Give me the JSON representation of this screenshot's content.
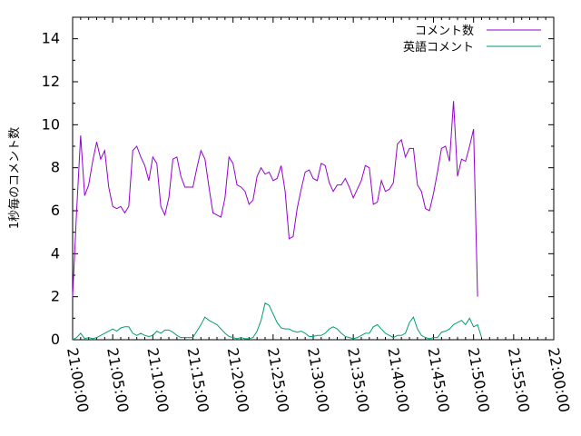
{
  "chart_data": {
    "type": "line",
    "title": "",
    "xlabel": "",
    "ylabel": "1秒毎のコメント数",
    "ylim": [
      0,
      15
    ],
    "yticks": [
      0,
      2,
      4,
      6,
      8,
      10,
      12,
      14
    ],
    "xlim": [
      "21:00:00",
      "22:00:00"
    ],
    "xticks": [
      "21:00:00",
      "21:05:00",
      "21:10:00",
      "21:15:00",
      "21:20:00",
      "21:25:00",
      "21:30:00",
      "21:35:00",
      "21:40:00",
      "21:45:00",
      "21:50:00",
      "21:55:00",
      "22:00:00"
    ],
    "grid": false,
    "legend_position": "top-right",
    "series": [
      {
        "name": "コメント数",
        "color": "#9400d3",
        "points": [
          [
            "21:00:00",
            2.0
          ],
          [
            "21:00:30",
            6.0
          ],
          [
            "21:01:00",
            9.5
          ],
          [
            "21:01:30",
            6.7
          ],
          [
            "21:02:00",
            7.2
          ],
          [
            "21:02:30",
            8.3
          ],
          [
            "21:03:00",
            9.2
          ],
          [
            "21:03:30",
            8.4
          ],
          [
            "21:04:00",
            8.8
          ],
          [
            "21:04:30",
            7.1
          ],
          [
            "21:05:00",
            6.2
          ],
          [
            "21:05:30",
            6.1
          ],
          [
            "21:06:00",
            6.2
          ],
          [
            "21:06:30",
            5.9
          ],
          [
            "21:07:00",
            6.2
          ],
          [
            "21:07:30",
            8.8
          ],
          [
            "21:08:00",
            9.0
          ],
          [
            "21:08:30",
            8.5
          ],
          [
            "21:09:00",
            8.1
          ],
          [
            "21:09:30",
            7.4
          ],
          [
            "21:10:00",
            8.5
          ],
          [
            "21:10:30",
            8.2
          ],
          [
            "21:11:00",
            6.2
          ],
          [
            "21:11:30",
            5.8
          ],
          [
            "21:12:00",
            6.6
          ],
          [
            "21:12:30",
            8.4
          ],
          [
            "21:13:00",
            8.5
          ],
          [
            "21:13:30",
            7.6
          ],
          [
            "21:14:00",
            7.1
          ],
          [
            "21:14:30",
            7.1
          ],
          [
            "21:15:00",
            7.1
          ],
          [
            "21:15:30",
            8.0
          ],
          [
            "21:16:00",
            8.8
          ],
          [
            "21:16:30",
            8.4
          ],
          [
            "21:17:00",
            7.1
          ],
          [
            "21:17:30",
            5.9
          ],
          [
            "21:18:00",
            5.8
          ],
          [
            "21:18:30",
            5.7
          ],
          [
            "21:19:00",
            6.6
          ],
          [
            "21:19:30",
            8.5
          ],
          [
            "21:20:00",
            8.2
          ],
          [
            "21:20:30",
            7.2
          ],
          [
            "21:21:00",
            7.1
          ],
          [
            "21:21:30",
            6.9
          ],
          [
            "21:22:00",
            6.3
          ],
          [
            "21:22:30",
            6.5
          ],
          [
            "21:23:00",
            7.6
          ],
          [
            "21:23:30",
            8.0
          ],
          [
            "21:24:00",
            7.7
          ],
          [
            "21:24:30",
            7.8
          ],
          [
            "21:25:00",
            7.4
          ],
          [
            "21:25:30",
            7.5
          ],
          [
            "21:26:00",
            8.1
          ],
          [
            "21:26:30",
            6.9
          ],
          [
            "21:27:00",
            4.7
          ],
          [
            "21:27:30",
            4.8
          ],
          [
            "21:28:00",
            6.1
          ],
          [
            "21:28:30",
            7.0
          ],
          [
            "21:29:00",
            7.8
          ],
          [
            "21:29:30",
            7.9
          ],
          [
            "21:30:00",
            7.5
          ],
          [
            "21:30:30",
            7.4
          ],
          [
            "21:31:00",
            8.2
          ],
          [
            "21:31:30",
            8.1
          ],
          [
            "21:32:00",
            7.3
          ],
          [
            "21:32:30",
            6.9
          ],
          [
            "21:33:00",
            7.2
          ],
          [
            "21:33:30",
            7.2
          ],
          [
            "21:34:00",
            7.5
          ],
          [
            "21:34:30",
            7.1
          ],
          [
            "21:35:00",
            6.6
          ],
          [
            "21:35:30",
            7.0
          ],
          [
            "21:36:00",
            7.4
          ],
          [
            "21:36:30",
            8.1
          ],
          [
            "21:37:00",
            8.0
          ],
          [
            "21:37:30",
            6.3
          ],
          [
            "21:38:00",
            6.4
          ],
          [
            "21:38:30",
            7.4
          ],
          [
            "21:39:00",
            6.9
          ],
          [
            "21:39:30",
            7.0
          ],
          [
            "21:40:00",
            7.3
          ],
          [
            "21:40:30",
            9.1
          ],
          [
            "21:41:00",
            9.3
          ],
          [
            "21:41:30",
            8.5
          ],
          [
            "21:42:00",
            8.9
          ],
          [
            "21:42:30",
            8.9
          ],
          [
            "21:43:00",
            7.2
          ],
          [
            "21:43:30",
            6.9
          ],
          [
            "21:44:00",
            6.1
          ],
          [
            "21:44:30",
            6.0
          ],
          [
            "21:45:00",
            6.8
          ],
          [
            "21:45:30",
            7.8
          ],
          [
            "21:46:00",
            8.9
          ],
          [
            "21:46:30",
            9.0
          ],
          [
            "21:47:00",
            8.3
          ],
          [
            "21:47:30",
            11.1
          ],
          [
            "21:48:00",
            7.6
          ],
          [
            "21:48:30",
            8.4
          ],
          [
            "21:49:00",
            8.3
          ],
          [
            "21:49:30",
            9.0
          ],
          [
            "21:50:00",
            9.8
          ],
          [
            "21:50:30",
            2.0
          ]
        ]
      },
      {
        "name": "英語コメント",
        "color": "#009e73",
        "points": [
          [
            "21:00:00",
            0.0
          ],
          [
            "21:00:30",
            0.1
          ],
          [
            "21:01:00",
            0.3
          ],
          [
            "21:01:30",
            0.05
          ],
          [
            "21:02:00",
            0.1
          ],
          [
            "21:02:30",
            0.05
          ],
          [
            "21:03:00",
            0.1
          ],
          [
            "21:03:30",
            0.2
          ],
          [
            "21:04:00",
            0.3
          ],
          [
            "21:04:30",
            0.4
          ],
          [
            "21:05:00",
            0.5
          ],
          [
            "21:05:30",
            0.4
          ],
          [
            "21:06:00",
            0.55
          ],
          [
            "21:06:30",
            0.6
          ],
          [
            "21:07:00",
            0.6
          ],
          [
            "21:07:30",
            0.3
          ],
          [
            "21:08:00",
            0.2
          ],
          [
            "21:08:30",
            0.3
          ],
          [
            "21:09:00",
            0.2
          ],
          [
            "21:09:30",
            0.15
          ],
          [
            "21:10:00",
            0.2
          ],
          [
            "21:10:30",
            0.4
          ],
          [
            "21:11:00",
            0.3
          ],
          [
            "21:11:30",
            0.45
          ],
          [
            "21:12:00",
            0.45
          ],
          [
            "21:12:30",
            0.35
          ],
          [
            "21:13:00",
            0.2
          ],
          [
            "21:13:30",
            0.1
          ],
          [
            "21:14:00",
            0.1
          ],
          [
            "21:14:30",
            0.1
          ],
          [
            "21:15:00",
            0.1
          ],
          [
            "21:15:30",
            0.4
          ],
          [
            "21:16:00",
            0.7
          ],
          [
            "21:16:30",
            1.05
          ],
          [
            "21:17:00",
            0.9
          ],
          [
            "21:17:30",
            0.8
          ],
          [
            "21:18:00",
            0.7
          ],
          [
            "21:18:30",
            0.5
          ],
          [
            "21:19:00",
            0.3
          ],
          [
            "21:19:30",
            0.15
          ],
          [
            "21:20:00",
            0.1
          ],
          [
            "21:20:30",
            0.05
          ],
          [
            "21:21:00",
            0.1
          ],
          [
            "21:21:30",
            0.05
          ],
          [
            "21:22:00",
            0.05
          ],
          [
            "21:22:30",
            0.1
          ],
          [
            "21:23:00",
            0.4
          ],
          [
            "21:23:30",
            0.9
          ],
          [
            "21:24:00",
            1.7
          ],
          [
            "21:24:30",
            1.6
          ],
          [
            "21:25:00",
            1.2
          ],
          [
            "21:25:30",
            0.8
          ],
          [
            "21:26:00",
            0.55
          ],
          [
            "21:26:30",
            0.5
          ],
          [
            "21:27:00",
            0.5
          ],
          [
            "21:27:30",
            0.4
          ],
          [
            "21:28:00",
            0.35
          ],
          [
            "21:28:30",
            0.4
          ],
          [
            "21:29:00",
            0.3
          ],
          [
            "21:29:30",
            0.15
          ],
          [
            "21:30:00",
            0.15
          ],
          [
            "21:30:30",
            0.2
          ],
          [
            "21:31:00",
            0.2
          ],
          [
            "21:31:30",
            0.3
          ],
          [
            "21:32:00",
            0.5
          ],
          [
            "21:32:30",
            0.6
          ],
          [
            "21:33:00",
            0.5
          ],
          [
            "21:33:30",
            0.3
          ],
          [
            "21:34:00",
            0.15
          ],
          [
            "21:34:30",
            0.1
          ],
          [
            "21:35:00",
            0.05
          ],
          [
            "21:35:30",
            0.1
          ],
          [
            "21:36:00",
            0.2
          ],
          [
            "21:36:30",
            0.3
          ],
          [
            "21:37:00",
            0.3
          ],
          [
            "21:37:30",
            0.6
          ],
          [
            "21:38:00",
            0.7
          ],
          [
            "21:38:30",
            0.5
          ],
          [
            "21:39:00",
            0.3
          ],
          [
            "21:39:30",
            0.2
          ],
          [
            "21:40:00",
            0.1
          ],
          [
            "21:40:30",
            0.2
          ],
          [
            "21:41:00",
            0.2
          ],
          [
            "21:41:30",
            0.3
          ],
          [
            "21:42:00",
            0.8
          ],
          [
            "21:42:30",
            1.05
          ],
          [
            "21:43:00",
            0.5
          ],
          [
            "21:43:30",
            0.2
          ],
          [
            "21:44:00",
            0.1
          ],
          [
            "21:44:30",
            0.05
          ],
          [
            "21:45:00",
            0.1
          ],
          [
            "21:45:30",
            0.1
          ],
          [
            "21:46:00",
            0.35
          ],
          [
            "21:46:30",
            0.4
          ],
          [
            "21:47:00",
            0.5
          ],
          [
            "21:47:30",
            0.7
          ],
          [
            "21:48:00",
            0.8
          ],
          [
            "21:48:30",
            0.9
          ],
          [
            "21:49:00",
            0.7
          ],
          [
            "21:49:30",
            1.0
          ],
          [
            "21:50:00",
            0.6
          ],
          [
            "21:50:30",
            0.7
          ],
          [
            "21:51:00",
            0.1
          ]
        ]
      }
    ]
  }
}
